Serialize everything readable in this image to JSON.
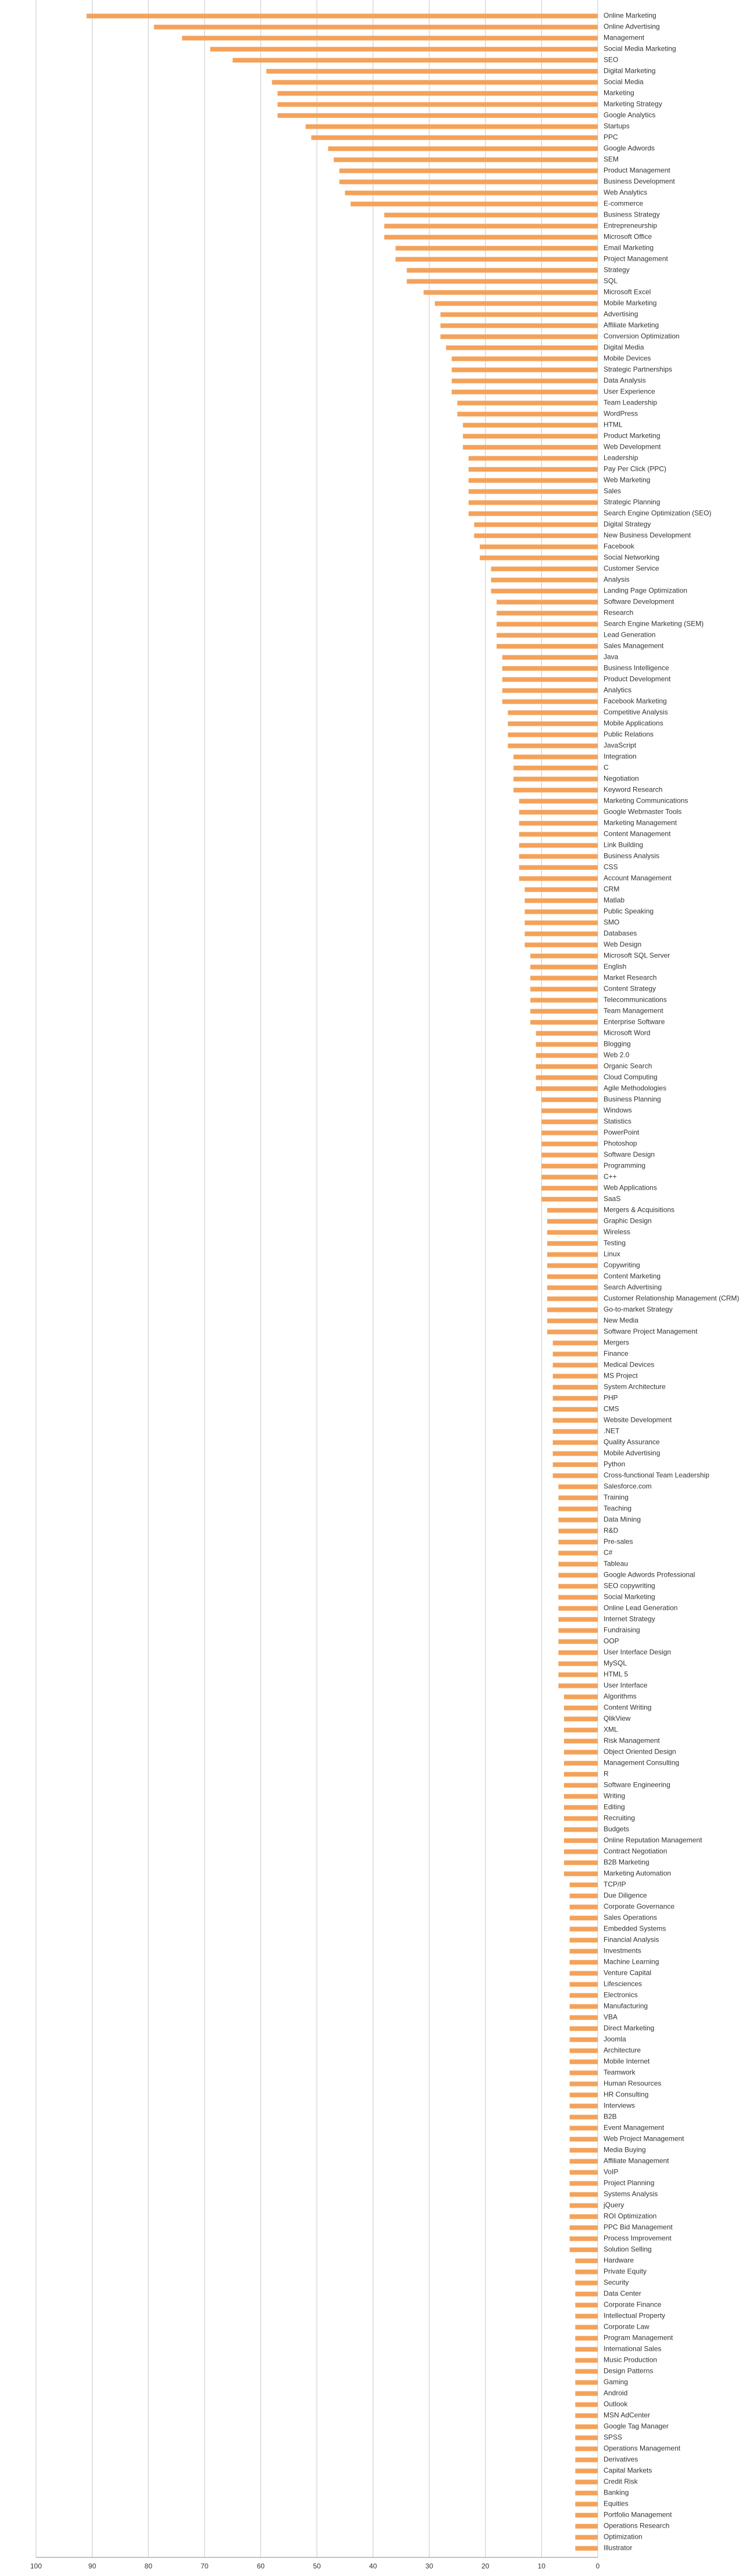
{
  "chart_data": {
    "type": "barh",
    "color": "#f4a25a",
    "grid": true,
    "xlim": [
      100,
      0
    ],
    "xticks": [
      100,
      90,
      80,
      70,
      60,
      50,
      40,
      30,
      20,
      10,
      0
    ],
    "categories": [
      "Online Marketing",
      "Online Advertising",
      "Management",
      "Social Media Marketing",
      "SEO",
      "Digital Marketing",
      "Social Media",
      "Marketing",
      "Marketing Strategy",
      "Google Analytics",
      "Startups",
      "PPC",
      "Google Adwords",
      "SEM",
      "Product Management",
      "Business Development",
      "Web Analytics",
      "E-commerce",
      "Business Strategy",
      "Entrepreneurship",
      "Microsoft Office",
      "Email Marketing",
      "Project Management",
      "Strategy",
      "SQL",
      "Microsoft Excel",
      "Mobile Marketing",
      "Advertising",
      "Affiliate Marketing",
      "Conversion Optimization",
      "Digital Media",
      "Mobile Devices",
      "Strategic Partnerships",
      "Data Analysis",
      "User Experience",
      "Team Leadership",
      "WordPress",
      "HTML",
      "Product Marketing",
      "Web Development",
      "Leadership",
      "Pay Per Click (PPC)",
      "Web Marketing",
      "Sales",
      "Strategic Planning",
      "Search Engine Optimization (SEO)",
      "Digital Strategy",
      "New Business Development",
      "Facebook",
      "Social Networking",
      "Customer Service",
      "Analysis",
      "Landing Page Optimization",
      "Software Development",
      "Research",
      "Search Engine Marketing (SEM)",
      "Lead Generation",
      "Sales Management",
      "Java",
      "Business Intelligence",
      "Product Development",
      "Analytics",
      "Facebook Marketing",
      "Competitive Analysis",
      "Mobile Applications",
      "Public Relations",
      "JavaScript",
      "Integration",
      "C",
      "Negotiation",
      "Keyword Research",
      "Marketing Communications",
      "Google Webmaster Tools",
      "Marketing Management",
      "Content Management",
      "Link Building",
      "Business Analysis",
      "CSS",
      "Account Management",
      "CRM",
      "Matlab",
      "Public Speaking",
      "SMO",
      "Databases",
      "Web Design",
      "Microsoft SQL Server",
      "English",
      "Market Research",
      "Content Strategy",
      "Telecommunications",
      "Team Management",
      "Enterprise Software",
      "Microsoft Word",
      "Blogging",
      "Web 2.0",
      "Organic Search",
      "Cloud Computing",
      "Agile Methodologies",
      "Business Planning",
      "Windows",
      "Statistics",
      "PowerPoint",
      "Photoshop",
      "Software Design",
      "Programming",
      "C++",
      "Web Applications",
      "SaaS",
      "Mergers & Acquisitions",
      "Graphic Design",
      "Wireless",
      "Testing",
      "Linux",
      "Copywriting",
      "Content Marketing",
      "Search Advertising",
      "Customer Relationship Management (CRM)",
      "Go-to-market Strategy",
      "New Media",
      "Software Project Management",
      "Mergers",
      "Finance",
      "Medical Devices",
      "MS Project",
      "System Architecture",
      "PHP",
      "CMS",
      "Website Development",
      ".NET",
      "Quality Assurance",
      "Mobile Advertising",
      "Python",
      "Cross-functional Team Leadership",
      "Salesforce.com",
      "Training",
      "Teaching",
      "Data Mining",
      "R&D",
      "Pre-sales",
      "C#",
      "Tableau",
      "Google Adwords Professional",
      "SEO copywriting",
      "Social Marketing",
      "Online Lead Generation",
      "Internet Strategy",
      "Fundraising",
      "OOP",
      "User Interface Design",
      "MySQL",
      "HTML 5",
      "User Interface",
      "Algorithms",
      "Content Writing",
      "QlikView",
      "XML",
      "Risk Management",
      "Object Oriented Design",
      "Management Consulting",
      "R",
      "Software Engineering",
      "Writing",
      "Editing",
      "Recruiting",
      "Budgets",
      "Online Reputation Management",
      "Contract Negotiation",
      "B2B Marketing",
      "Marketing Automation",
      "TCP/IP",
      "Due Diligence",
      "Corporate Governance",
      "Sales Operations",
      "Embedded Systems",
      "Financial Analysis",
      "Investments",
      "Machine Learning",
      "Venture Capital",
      "Lifesciences",
      "Electronics",
      "Manufacturing",
      "VBA",
      "Direct Marketing",
      "Joomla",
      "Architecture",
      "Mobile Internet",
      "Teamwork",
      "Human Resources",
      "HR Consulting",
      "Interviews",
      "B2B",
      "Event Management",
      "Web Project Management",
      "Media Buying",
      "Affiliate Management",
      "VoIP",
      "Project Planning",
      "Systems Analysis",
      "jQuery",
      "ROI Optimization",
      "PPC Bid Management",
      "Process Improvement",
      "Solution Selling",
      "Hardware",
      "Private Equity",
      "Security",
      "Data Center",
      "Corporate Finance",
      "Intellectual Property",
      "Corporate Law",
      "Program Management",
      "International Sales",
      "Music Production",
      "Design Patterns",
      "Gaming",
      "Android",
      "Outlook",
      "MSN AdCenter",
      "Google Tag Manager",
      "SPSS",
      "Operations Management",
      "Derivatives",
      "Capital Markets",
      "Credit Risk",
      "Banking",
      "Equities",
      "Portfolio Management",
      "Operations Research",
      "Optimization",
      "Illustrator"
    ],
    "values": [
      91,
      79,
      74,
      69,
      65,
      59,
      58,
      57,
      57,
      57,
      52,
      51,
      48,
      47,
      46,
      46,
      45,
      44,
      38,
      38,
      38,
      36,
      36,
      34,
      34,
      31,
      29,
      28,
      28,
      28,
      27,
      26,
      26,
      26,
      26,
      25,
      25,
      24,
      24,
      24,
      23,
      23,
      23,
      23,
      23,
      23,
      22,
      22,
      21,
      21,
      19,
      19,
      19,
      18,
      18,
      18,
      18,
      18,
      17,
      17,
      17,
      17,
      17,
      16,
      16,
      16,
      16,
      15,
      15,
      15,
      15,
      14,
      14,
      14,
      14,
      14,
      14,
      14,
      14,
      13,
      13,
      13,
      13,
      13,
      13,
      12,
      12,
      12,
      12,
      12,
      12,
      12,
      11,
      11,
      11,
      11,
      11,
      11,
      10,
      10,
      10,
      10,
      10,
      10,
      10,
      10,
      10,
      10,
      9,
      9,
      9,
      9,
      9,
      9,
      9,
      9,
      9,
      9,
      9,
      9,
      8,
      8,
      8,
      8,
      8,
      8,
      8,
      8,
      8,
      8,
      8,
      8,
      8,
      7,
      7,
      7,
      7,
      7,
      7,
      7,
      7,
      7,
      7,
      7,
      7,
      7,
      7,
      7,
      7,
      7,
      7,
      7,
      6,
      6,
      6,
      6,
      6,
      6,
      6,
      6,
      6,
      6,
      6,
      6,
      6,
      6,
      6,
      6,
      6,
      5,
      5,
      5,
      5,
      5,
      5,
      5,
      5,
      5,
      5,
      5,
      5,
      5,
      5,
      5,
      5,
      5,
      5,
      5,
      5,
      5,
      5,
      5,
      5,
      5,
      5,
      5,
      5,
      5,
      5,
      5,
      5,
      5,
      5,
      4,
      4,
      4,
      4,
      4,
      4,
      4,
      4,
      4,
      4,
      4,
      4,
      4,
      4,
      4,
      4,
      4,
      4,
      4,
      4,
      4,
      4,
      4,
      4,
      4,
      4,
      4
    ]
  }
}
